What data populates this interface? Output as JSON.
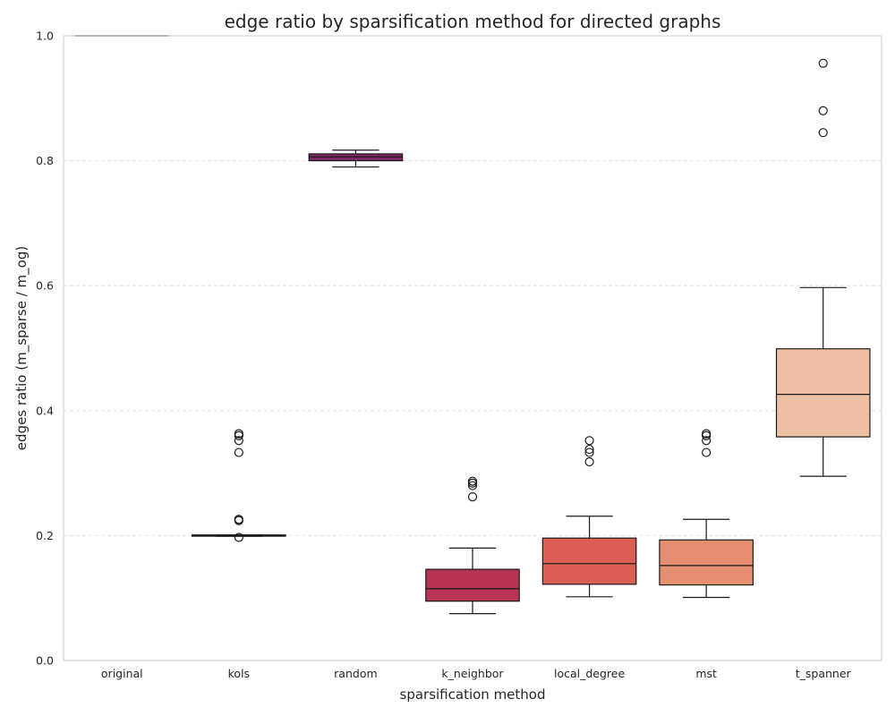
{
  "chart_data": {
    "type": "box",
    "title": "edge ratio by sparsification method for directed graphs",
    "xlabel": "sparsification method",
    "ylabel": "edges ratio (m_sparse / m_og)",
    "ylim": [
      0,
      1
    ],
    "yticks": [
      0.0,
      0.2,
      0.4,
      0.6,
      0.8,
      1.0
    ],
    "ytick_labels": [
      "0.0",
      "0.2",
      "0.4",
      "0.6",
      "0.8",
      "1.0"
    ],
    "grid": true,
    "categories": [
      "original",
      "kols",
      "random",
      "k_neighbor",
      "local_degree",
      "mst",
      "t_spanner"
    ],
    "boxes": [
      {
        "name": "original",
        "whislo": 1.0,
        "q1": 1.0,
        "med": 1.0,
        "q3": 1.0,
        "whishi": 1.0,
        "fliers": [],
        "color": "#2b1f3a"
      },
      {
        "name": "kols",
        "whislo": 0.199,
        "q1": 0.199,
        "med": 0.2,
        "q3": 0.201,
        "whishi": 0.201,
        "fliers": [
          0.197,
          0.224,
          0.226,
          0.333,
          0.352,
          0.36,
          0.363
        ],
        "color": "#3d1d4a"
      },
      {
        "name": "random",
        "whislo": 0.79,
        "q1": 0.8,
        "med": 0.806,
        "q3": 0.811,
        "whishi": 0.817,
        "fliers": [],
        "color": "#7a2a63"
      },
      {
        "name": "k_neighbor",
        "whislo": 0.075,
        "q1": 0.095,
        "med": 0.115,
        "q3": 0.146,
        "whishi": 0.18,
        "fliers": [
          0.262,
          0.28,
          0.284,
          0.287
        ],
        "color": "#b73455"
      },
      {
        "name": "local_degree",
        "whislo": 0.102,
        "q1": 0.122,
        "med": 0.155,
        "q3": 0.196,
        "whishi": 0.231,
        "fliers": [
          0.318,
          0.333,
          0.338,
          0.352
        ],
        "color": "#db5e55"
      },
      {
        "name": "mst",
        "whislo": 0.101,
        "q1": 0.121,
        "med": 0.152,
        "q3": 0.193,
        "whishi": 0.226,
        "fliers": [
          0.333,
          0.352,
          0.36,
          0.363
        ],
        "color": "#e58f70"
      },
      {
        "name": "t_spanner",
        "whislo": 0.295,
        "q1": 0.358,
        "med": 0.426,
        "q3": 0.499,
        "whishi": 0.597,
        "fliers": [
          0.845,
          0.88,
          0.956
        ],
        "color": "#edbfa3"
      }
    ]
  }
}
